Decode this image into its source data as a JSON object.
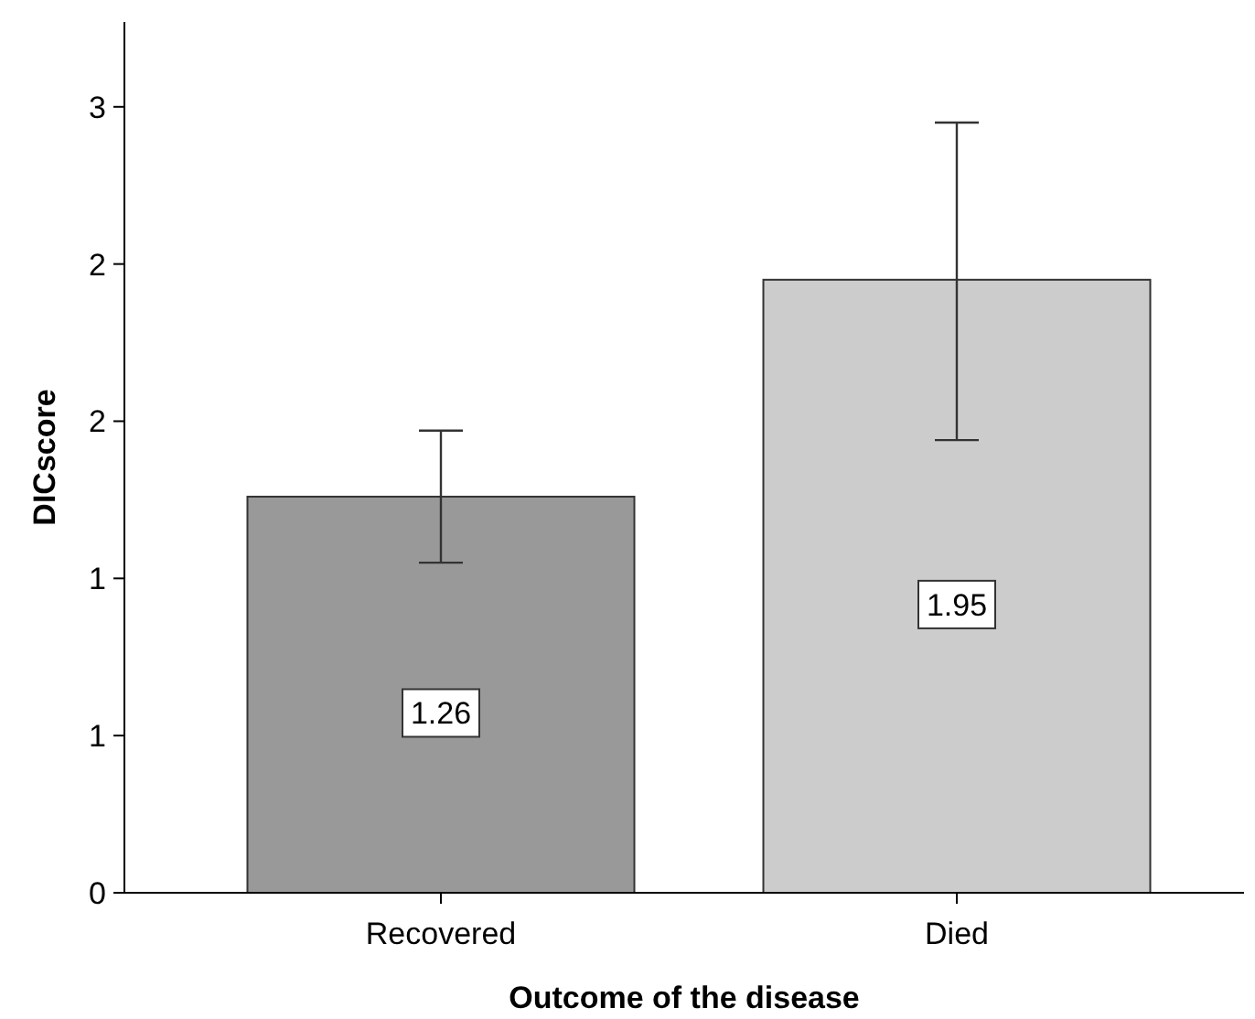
{
  "chart_data": {
    "type": "bar",
    "xlabel": "Outcome of the disease",
    "ylabel": "DICscore",
    "categories": [
      "Recovered",
      "Died"
    ],
    "values": [
      1.26,
      1.95
    ],
    "colors": [
      "#999999",
      "#cccccc"
    ],
    "errors": [
      [
        1.05,
        1.47
      ],
      [
        1.44,
        2.45
      ]
    ],
    "data_labels": true,
    "ylim": [
      0,
      2.77
    ],
    "yticks": [
      {
        "value": 0,
        "label": "0"
      },
      {
        "value": 0.5,
        "label": "1"
      },
      {
        "value": 1,
        "label": "1"
      },
      {
        "value": 1.5,
        "label": "2"
      },
      {
        "value": 2,
        "label": "2"
      },
      {
        "value": 2.5,
        "label": "3"
      }
    ],
    "grid": false
  }
}
